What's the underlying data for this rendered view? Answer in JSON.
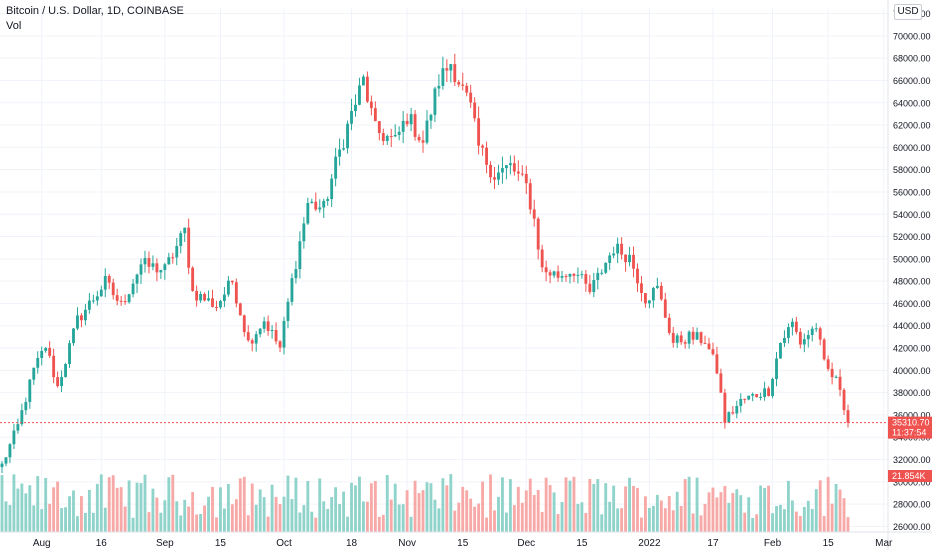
{
  "legend": {
    "title": "Bitcoin / U.S. Dollar, 1D, COINBASE",
    "volume_label": "Vol"
  },
  "currency_button": "USD",
  "colors": {
    "up": "#26a69a",
    "down": "#ef5350",
    "up_vol": "#8fd3cb",
    "down_vol": "#f7a9a7",
    "price_tag": "#ef5350"
  },
  "price_tag": {
    "price": "35310.70",
    "countdown": "11:37:54",
    "value": 35310.7
  },
  "volume_tag": {
    "label": "21.854K"
  },
  "chart_data": {
    "type": "candlestick",
    "title": "Bitcoin / U.S. Dollar, 1D, COINBASE",
    "y_axis_position": "right",
    "ylim": [
      25500,
      72500
    ],
    "y_ticks": [
      26000,
      28000,
      30000,
      32000,
      34000,
      36000,
      38000,
      40000,
      42000,
      44000,
      46000,
      48000,
      50000,
      52000,
      54000,
      56000,
      58000,
      60000,
      62000,
      64000,
      66000,
      68000,
      70000,
      72000
    ],
    "y_tick_labels": [
      "26000.00",
      "28000.00",
      "30000.00",
      "32000.00",
      "34000.00",
      "36000.00",
      "38000.00",
      "40000.00",
      "42000.00",
      "44000.00",
      "46000.00",
      "48000.00",
      "50000.00",
      "52000.00",
      "54000.00",
      "56000.00",
      "58000.00",
      "60000.00",
      "62000.00",
      "64000.00",
      "66000.00",
      "68000.00",
      "70000.00",
      "72000.00"
    ],
    "x_tick_labels": [
      {
        "label": "Aug",
        "index": 10
      },
      {
        "label": "16",
        "index": 25
      },
      {
        "label": "Sep",
        "index": 41
      },
      {
        "label": "15",
        "index": 55
      },
      {
        "label": "Oct",
        "index": 71
      },
      {
        "label": "18",
        "index": 88
      },
      {
        "label": "Nov",
        "index": 102
      },
      {
        "label": "15",
        "index": 116
      },
      {
        "label": "Dec",
        "index": 132
      },
      {
        "label": "15",
        "index": 146
      },
      {
        "label": "2022",
        "index": 163
      },
      {
        "label": "17",
        "index": 179
      },
      {
        "label": "Feb",
        "index": 194
      },
      {
        "label": "15",
        "index": 208
      },
      {
        "label": "Mar",
        "index": 222
      }
    ],
    "anchors": [
      {
        "i": 0,
        "p": 31500
      },
      {
        "i": 4,
        "p": 35000
      },
      {
        "i": 8,
        "p": 40000
      },
      {
        "i": 11,
        "p": 42200
      },
      {
        "i": 14,
        "p": 38500
      },
      {
        "i": 19,
        "p": 44500
      },
      {
        "i": 26,
        "p": 47900
      },
      {
        "i": 30,
        "p": 45800
      },
      {
        "i": 35,
        "p": 49500
      },
      {
        "i": 41,
        "p": 49000
      },
      {
        "i": 46,
        "p": 52500
      },
      {
        "i": 48,
        "p": 47000
      },
      {
        "i": 54,
        "p": 45800
      },
      {
        "i": 58,
        "p": 48000
      },
      {
        "i": 62,
        "p": 42500
      },
      {
        "i": 66,
        "p": 44500
      },
      {
        "i": 70,
        "p": 42000
      },
      {
        "i": 73,
        "p": 48000
      },
      {
        "i": 77,
        "p": 55000
      },
      {
        "i": 81,
        "p": 54500
      },
      {
        "i": 84,
        "p": 58500
      },
      {
        "i": 88,
        "p": 63000
      },
      {
        "i": 91,
        "p": 66000
      },
      {
        "i": 94,
        "p": 61500
      },
      {
        "i": 99,
        "p": 60500
      },
      {
        "i": 102,
        "p": 62800
      },
      {
        "i": 106,
        "p": 60500
      },
      {
        "i": 110,
        "p": 66000
      },
      {
        "i": 113,
        "p": 67600
      },
      {
        "i": 118,
        "p": 63500
      },
      {
        "i": 120,
        "p": 60000
      },
      {
        "i": 124,
        "p": 57500
      },
      {
        "i": 128,
        "p": 58300
      },
      {
        "i": 132,
        "p": 56500
      },
      {
        "i": 134,
        "p": 53500
      },
      {
        "i": 136,
        "p": 49000
      },
      {
        "i": 140,
        "p": 48500
      },
      {
        "i": 144,
        "p": 49000
      },
      {
        "i": 148,
        "p": 47000
      },
      {
        "i": 154,
        "p": 51000
      },
      {
        "i": 158,
        "p": 50200
      },
      {
        "i": 162,
        "p": 46500
      },
      {
        "i": 165,
        "p": 47300
      },
      {
        "i": 169,
        "p": 42500
      },
      {
        "i": 173,
        "p": 43000
      },
      {
        "i": 177,
        "p": 42700
      },
      {
        "i": 180,
        "p": 40000
      },
      {
        "i": 182,
        "p": 35500
      },
      {
        "i": 186,
        "p": 37200
      },
      {
        "i": 191,
        "p": 38000
      },
      {
        "i": 193,
        "p": 38200
      },
      {
        "i": 196,
        "p": 42500
      },
      {
        "i": 199,
        "p": 44200
      },
      {
        "i": 201,
        "p": 42500
      },
      {
        "i": 205,
        "p": 44000
      },
      {
        "i": 207,
        "p": 40500
      },
      {
        "i": 211,
        "p": 38500
      },
      {
        "i": 213,
        "p": 35300
      }
    ],
    "candle_count": 214,
    "last_close": 35310.7
  }
}
